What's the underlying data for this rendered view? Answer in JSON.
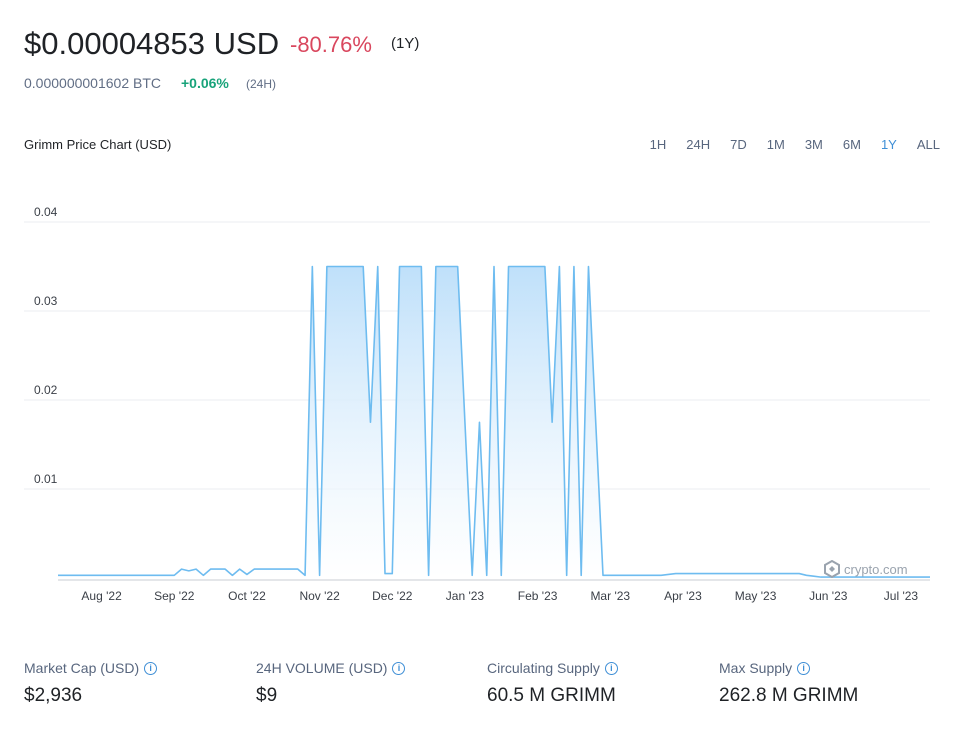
{
  "header": {
    "price": "$0.00004853 USD",
    "change": "-80.76%",
    "change_period": "(1Y)",
    "btc_price": "0.000000001602 BTC",
    "btc_change": "+0.06%",
    "btc_period": "(24H)"
  },
  "range_buttons": [
    "1H",
    "24H",
    "7D",
    "1M",
    "3M",
    "6M",
    "1Y",
    "ALL"
  ],
  "active_range": "1Y",
  "watermark": "crypto.com",
  "stats": [
    {
      "label": "Market Cap (USD)",
      "value": "$2,936"
    },
    {
      "label": "24H VOLUME (USD)",
      "value": "$9"
    },
    {
      "label": "Circulating Supply",
      "value": "60.5 M GRIMM"
    },
    {
      "label": "Max Supply",
      "value": "262.8 M GRIMM"
    }
  ],
  "chart_data": {
    "type": "area",
    "title": "Grimm Price Chart (USD)",
    "categories": [
      null,
      null,
      null,
      null,
      null,
      null,
      "Aug '22",
      null,
      null,
      null,
      null,
      null,
      null,
      null,
      null,
      null,
      "Sep '22",
      null,
      null,
      null,
      null,
      null,
      null,
      null,
      null,
      null,
      "Oct '22",
      null,
      null,
      null,
      null,
      null,
      null,
      null,
      null,
      null,
      "Nov '22",
      null,
      null,
      null,
      null,
      null,
      null,
      null,
      null,
      null,
      "Dec '22",
      null,
      null,
      null,
      null,
      null,
      null,
      null,
      null,
      null,
      "Jan '23",
      null,
      null,
      null,
      null,
      null,
      null,
      null,
      null,
      null,
      "Feb '23",
      null,
      null,
      null,
      null,
      null,
      null,
      null,
      null,
      null,
      "Mar '23",
      null,
      null,
      null,
      null,
      null,
      null,
      null,
      null,
      null,
      "Apr '23",
      null,
      null,
      null,
      null,
      null,
      null,
      null,
      null,
      null,
      "May '23",
      null,
      null,
      null,
      null,
      null,
      null,
      null,
      null,
      null,
      "Jun '23",
      null,
      null,
      null,
      null,
      null,
      null,
      null,
      null,
      null,
      "Jul '23",
      null,
      null,
      null,
      null
    ],
    "series": [
      {
        "name": "Price",
        "color": "#6ebcf0",
        "values": [
          0.0003,
          0.0003,
          0.0003,
          0.0003,
          0.0003,
          0.0003,
          0.0003,
          0.0003,
          0.0003,
          0.0003,
          0.0003,
          0.0003,
          0.0003,
          0.0003,
          0.0003,
          0.0003,
          0.0003,
          0.001,
          0.0008,
          0.001,
          0.0003,
          0.001,
          0.001,
          0.001,
          0.0003,
          0.001,
          0.0004,
          0.001,
          0.001,
          0.001,
          0.001,
          0.001,
          0.001,
          0.001,
          0.0003,
          0.035,
          0.0003,
          0.035,
          0.035,
          0.035,
          0.035,
          0.035,
          0.035,
          0.0175,
          0.035,
          0.0005,
          0.0005,
          0.035,
          0.035,
          0.035,
          0.035,
          0.0003,
          0.035,
          0.035,
          0.035,
          0.035,
          0.0175,
          0.0003,
          0.0175,
          0.0003,
          0.035,
          0.0003,
          0.035,
          0.035,
          0.035,
          0.035,
          0.035,
          0.035,
          0.0175,
          0.035,
          0.0003,
          0.035,
          0.0003,
          0.035,
          0.0175,
          0.0003,
          0.0003,
          0.0003,
          0.0003,
          0.0003,
          0.0003,
          0.0003,
          0.0003,
          0.0003,
          0.0004,
          0.0005,
          0.0005,
          0.0005,
          0.0005,
          0.0005,
          0.0005,
          0.0005,
          0.0005,
          0.0005,
          0.0005,
          0.0005,
          0.0005,
          0.0005,
          0.0005,
          0.0005,
          0.0005,
          0.0005,
          0.0005,
          0.0003,
          0.0002,
          0.0001,
          0.0001,
          0.0001,
          0.0001,
          0.0001,
          0.0001,
          0.0001,
          0.0001,
          0.0001,
          0.0001,
          0.0001,
          0.0001,
          0.0001,
          0.0001,
          0.0001,
          0.0001
        ]
      }
    ],
    "ylim": [
      0,
      0.04
    ],
    "yticks": [
      0.01,
      0.02,
      0.03,
      0.04
    ],
    "grid": true
  }
}
